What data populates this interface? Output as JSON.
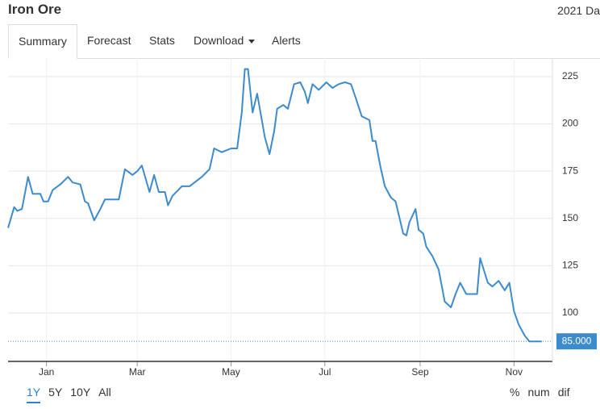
{
  "header": {
    "title": "Iron Ore",
    "date": "2021 Da"
  },
  "tabs": [
    "Summary",
    "Forecast",
    "Stats",
    "Download",
    "Alerts"
  ],
  "chart_data": {
    "type": "line",
    "x": [
      -25,
      -21,
      -19,
      -16,
      -12,
      -9,
      -4,
      -2,
      1,
      4,
      9,
      14,
      17,
      22,
      25,
      27,
      31,
      35,
      38,
      47,
      51,
      56,
      59,
      62,
      67,
      70,
      73,
      77,
      79,
      82,
      88,
      93,
      101,
      106,
      109,
      114,
      120,
      124,
      127,
      129,
      131,
      134,
      137,
      142,
      145,
      148,
      150,
      154,
      157,
      161,
      165,
      168,
      170,
      173,
      177,
      182,
      186,
      190,
      194,
      198,
      201,
      205,
      210,
      212,
      214,
      217,
      220,
      224,
      227,
      232,
      234,
      236,
      240,
      242,
      245,
      247,
      251,
      255,
      259,
      263,
      266,
      269,
      273,
      276,
      280,
      282,
      287,
      290,
      294,
      298,
      301,
      304,
      307,
      311,
      314,
      318,
      322
    ],
    "series": [
      {
        "name": "Iron Ore",
        "color": "#3d8bcd",
        "values": [
          145,
          156,
          154,
          155,
          172,
          163,
          163,
          159,
          159,
          165,
          168,
          172,
          169,
          168,
          159,
          158,
          149,
          155,
          160,
          160,
          176,
          173,
          175,
          178,
          164,
          173,
          164,
          164,
          157,
          162,
          167,
          167,
          172,
          176,
          187,
          185,
          187,
          187,
          206,
          229,
          229,
          206,
          216,
          193,
          184,
          196,
          208,
          210,
          208,
          221,
          222,
          217,
          211,
          221,
          218,
          222,
          219,
          221,
          222,
          221,
          214,
          204,
          202,
          191,
          191,
          178,
          167,
          161,
          159,
          142,
          141,
          148,
          155,
          144,
          142,
          135,
          130,
          123,
          106,
          103,
          110,
          116,
          110,
          110,
          110,
          129,
          116,
          114,
          117,
          112,
          116,
          101,
          94,
          88,
          85,
          85,
          85
        ]
      }
    ],
    "xlim": [
      -25,
      329
    ],
    "xticks": [
      {
        "value": 0,
        "label": "Jan"
      },
      {
        "value": 59,
        "label": "Mar"
      },
      {
        "value": 120,
        "label": "May"
      },
      {
        "value": 181,
        "label": "Jul"
      },
      {
        "value": 243,
        "label": "Sep"
      },
      {
        "value": 304,
        "label": "Nov"
      }
    ],
    "ylim": [
      74.4,
      234.8
    ],
    "yticks": [
      100,
      125,
      150,
      175,
      200,
      225
    ],
    "last_value": {
      "value": 85,
      "label": "85.000"
    },
    "grid": true
  },
  "ranges": [
    "1Y",
    "5Y",
    "10Y",
    "All"
  ],
  "modes": [
    "%",
    "num",
    "dif"
  ]
}
